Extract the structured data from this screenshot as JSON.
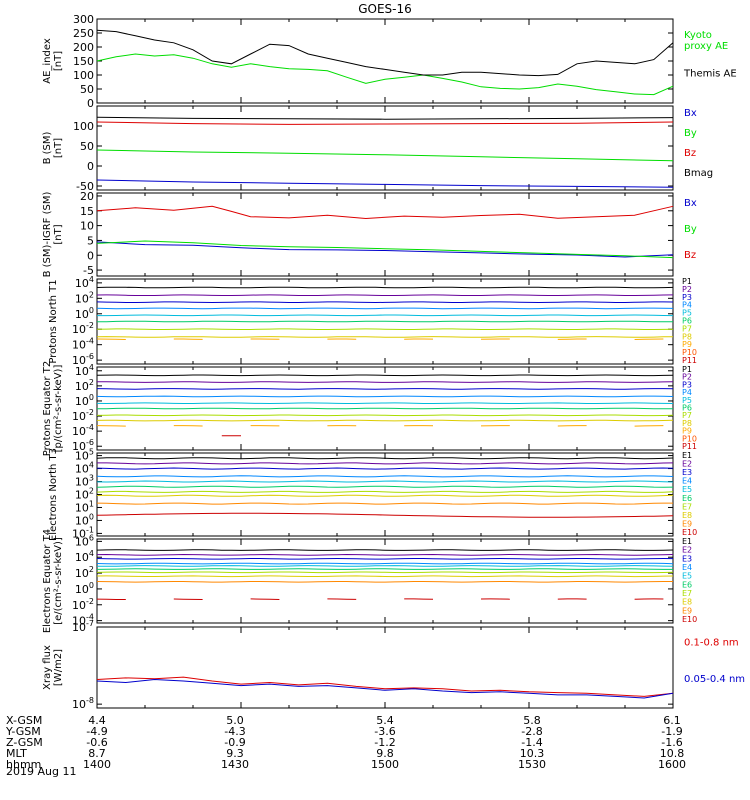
{
  "title": "GOES-16",
  "date_label": "2019 Aug 11",
  "footer": {
    "rows": [
      {
        "label": "X-GSM",
        "values": [
          "4.4",
          "5.0",
          "5.4",
          "5.8",
          "6.1"
        ]
      },
      {
        "label": "Y-GSM",
        "values": [
          "-4.9",
          "-4.3",
          "-3.6",
          "-2.8",
          "-1.9"
        ]
      },
      {
        "label": "Z-GSM",
        "values": [
          "-0.6",
          "-0.9",
          "-1.2",
          "-1.4",
          "-1.6"
        ]
      },
      {
        "label": "MLT",
        "values": [
          "8.7",
          "9.3",
          "9.8",
          "10.3",
          "10.8"
        ]
      },
      {
        "label": "hhmm",
        "values": [
          "1400",
          "1430",
          "1500",
          "1530",
          "1600"
        ]
      }
    ]
  },
  "chart_data": [
    {
      "type": "line",
      "ylabel": "AE_index [nT]",
      "x_range": [
        0,
        120
      ],
      "ylim": [
        0,
        300
      ],
      "yticks": [
        0,
        50,
        100,
        150,
        200,
        250,
        300
      ],
      "ytick_labels": [
        "0",
        "50",
        "100",
        "150",
        "200",
        "250",
        "300"
      ],
      "series": [
        {
          "name": "Kyoto proxy AE",
          "color": "#00dd00",
          "x": [
            0,
            4,
            8,
            12,
            16,
            20,
            24,
            28,
            32,
            36,
            40,
            44,
            48,
            52,
            56,
            60,
            64,
            68,
            72,
            76,
            80,
            84,
            88,
            92,
            96,
            100,
            104,
            108,
            112,
            116,
            120
          ],
          "y": [
            150,
            165,
            175,
            168,
            172,
            160,
            140,
            128,
            140,
            130,
            122,
            120,
            115,
            92,
            70,
            85,
            92,
            100,
            88,
            75,
            58,
            52,
            50,
            55,
            68,
            60,
            48,
            40,
            32,
            30,
            60
          ]
        },
        {
          "name": "Themis AE",
          "color": "#000000",
          "x": [
            0,
            4,
            8,
            12,
            16,
            20,
            24,
            28,
            32,
            36,
            40,
            44,
            48,
            52,
            56,
            60,
            64,
            68,
            72,
            76,
            80,
            84,
            88,
            92,
            96,
            100,
            104,
            108,
            112,
            116,
            120
          ],
          "y": [
            260,
            255,
            240,
            225,
            215,
            190,
            150,
            140,
            175,
            210,
            205,
            175,
            160,
            145,
            130,
            120,
            110,
            100,
            100,
            110,
            110,
            105,
            100,
            98,
            102,
            140,
            150,
            145,
            140,
            155,
            215
          ]
        }
      ]
    },
    {
      "type": "line",
      "ylabel": "B (SM) [nT]",
      "x_range": [
        0,
        120
      ],
      "ylim": [
        -60,
        150
      ],
      "yticks": [
        -50,
        0,
        50,
        100
      ],
      "ytick_labels": [
        "-50",
        "0",
        "50",
        "100"
      ],
      "series": [
        {
          "name": "Bx",
          "color": "#0000cc",
          "x": [
            0,
            20,
            40,
            60,
            80,
            100,
            120
          ],
          "y": [
            -35,
            -40,
            -43,
            -46,
            -49,
            -51,
            -53
          ]
        },
        {
          "name": "By",
          "color": "#00dd00",
          "x": [
            0,
            20,
            40,
            60,
            80,
            100,
            120
          ],
          "y": [
            40,
            35,
            32,
            28,
            23,
            18,
            13
          ]
        },
        {
          "name": "Bz",
          "color": "#dd0000",
          "x": [
            0,
            20,
            40,
            60,
            80,
            100,
            120
          ],
          "y": [
            110,
            106,
            104,
            105,
            106,
            107,
            110
          ]
        },
        {
          "name": "Bmag",
          "color": "#000000",
          "x": [
            0,
            20,
            40,
            60,
            80,
            100,
            120
          ],
          "y": [
            122,
            119,
            118,
            117,
            118,
            119,
            121
          ]
        }
      ]
    },
    {
      "type": "line",
      "ylabel": "B (SM)-IGRF (SM) [nT]",
      "x_range": [
        0,
        120
      ],
      "ylim": [
        -7,
        21
      ],
      "yticks": [
        -5,
        0,
        5,
        10,
        15,
        20
      ],
      "ytick_labels": [
        "-5",
        "0",
        "5",
        "10",
        "15",
        "20"
      ],
      "series": [
        {
          "name": "Bx",
          "color": "#0000cc",
          "x": [
            0,
            10,
            20,
            30,
            40,
            50,
            60,
            70,
            80,
            90,
            100,
            110,
            120
          ],
          "y": [
            4.5,
            3.6,
            3.4,
            2.5,
            1.9,
            1.8,
            1.6,
            1.2,
            0.8,
            0.4,
            0.1,
            -0.6,
            0.2
          ]
        },
        {
          "name": "By",
          "color": "#00dd00",
          "x": [
            0,
            10,
            20,
            30,
            40,
            50,
            60,
            70,
            80,
            90,
            100,
            110,
            120
          ],
          "y": [
            4.0,
            4.8,
            4.2,
            3.3,
            2.9,
            2.6,
            2.2,
            1.8,
            1.3,
            0.8,
            0.3,
            -0.2,
            -0.8
          ]
        },
        {
          "name": "Bz",
          "color": "#dd0000",
          "x": [
            0,
            8,
            16,
            24,
            28,
            32,
            40,
            48,
            56,
            64,
            72,
            80,
            88,
            96,
            104,
            112,
            120
          ],
          "y": [
            15,
            16,
            15.2,
            16.5,
            14.8,
            13,
            12.6,
            13.5,
            12.4,
            13.2,
            12.8,
            13.4,
            13.8,
            12.5,
            13,
            13.5,
            16.5
          ]
        }
      ]
    },
    {
      "type": "line",
      "ylabel": "Protons North T1",
      "log_scale": true,
      "x_range": [
        0,
        120
      ],
      "ylim": [
        -6.5,
        4.5
      ],
      "yticks": [
        -6,
        -4,
        -2,
        0,
        2,
        4
      ],
      "ytick_labels": [
        "10^-6",
        "10^-4",
        "10^-2",
        "10^0",
        "10^2",
        "10^4"
      ],
      "series": [
        {
          "name": "P1",
          "color": "#000000",
          "level": 3.4
        },
        {
          "name": "P2",
          "color": "#660099",
          "level": 2.4
        },
        {
          "name": "P3",
          "color": "#0000cc",
          "level": 1.5
        },
        {
          "name": "P4",
          "color": "#0088ff",
          "level": 0.7
        },
        {
          "name": "P5",
          "color": "#00bbdd",
          "level": -0.2
        },
        {
          "name": "P6",
          "color": "#00cc66",
          "level": -1.0
        },
        {
          "name": "P7",
          "color": "#aadd00",
          "level": -2.0
        },
        {
          "name": "P8",
          "color": "#ddcc00",
          "level": -3.0
        },
        {
          "name": "P9",
          "color": "#ffaa00",
          "level": -3.3,
          "broken": true
        }
      ],
      "legend": [
        "P1",
        "P2",
        "P3",
        "P4",
        "P5",
        "P6",
        "P7",
        "P8",
        "P9",
        "P10",
        "P11"
      ],
      "legend_colors": [
        "#000000",
        "#660099",
        "#0000cc",
        "#0088ff",
        "#00bbdd",
        "#00cc66",
        "#aadd00",
        "#ddcc00",
        "#ffaa00",
        "#ff5500",
        "#cc0000"
      ]
    },
    {
      "type": "line",
      "ylabel": "Protons Equator T2 [p/(cm²-s-sr-keV)]",
      "log_scale": true,
      "x_range": [
        0,
        120
      ],
      "ylim": [
        -6.5,
        4.5
      ],
      "yticks": [
        -6,
        -4,
        -2,
        0,
        2,
        4
      ],
      "ytick_labels": [
        "10^-6",
        "10^-4",
        "10^-2",
        "10^0",
        "10^2",
        "10^4"
      ],
      "series": [
        {
          "name": "P1",
          "color": "#000000",
          "level": 3.4
        },
        {
          "name": "P2",
          "color": "#660099",
          "level": 2.5
        },
        {
          "name": "P3",
          "color": "#0000cc",
          "level": 1.6
        },
        {
          "name": "P4",
          "color": "#0088ff",
          "level": 0.6
        },
        {
          "name": "P5",
          "color": "#00bbdd",
          "level": -0.3
        },
        {
          "name": "P6",
          "color": "#00cc66",
          "level": -1.0
        },
        {
          "name": "P7",
          "color": "#aadd00",
          "level": -1.9
        },
        {
          "name": "P8",
          "color": "#ddcc00",
          "level": -2.6
        },
        {
          "name": "P9",
          "color": "#ffaa00",
          "level": -3.3,
          "broken": true
        },
        {
          "name": "P10",
          "color": "#cc0000",
          "level": -4.6,
          "x": [
            26,
            30
          ]
        }
      ],
      "legend": [
        "P1",
        "P2",
        "P3",
        "P4",
        "P5",
        "P6",
        "P7",
        "P8",
        "P9",
        "P10",
        "P11"
      ],
      "legend_colors": [
        "#000000",
        "#660099",
        "#0000cc",
        "#0088ff",
        "#00bbdd",
        "#00cc66",
        "#aadd00",
        "#ddcc00",
        "#ffaa00",
        "#ff5500",
        "#cc0000"
      ]
    },
    {
      "type": "line",
      "ylabel": "Electrons North T3",
      "log_scale": true,
      "x_range": [
        0,
        120
      ],
      "ylim": [
        -1.2,
        5.2
      ],
      "yticks": [
        -1,
        0,
        1,
        2,
        3,
        4,
        5
      ],
      "ytick_labels": [
        "10^-1",
        "10^0",
        "10^1",
        "10^2",
        "10^3",
        "10^4",
        "10^5"
      ],
      "series": [
        {
          "name": "E1",
          "color": "#000000",
          "level": 4.8
        },
        {
          "name": "E2",
          "color": "#660099",
          "level": 4.4
        },
        {
          "name": "E3",
          "color": "#0000cc",
          "level": 4.0
        },
        {
          "name": "E4",
          "color": "#0088ff",
          "level": 3.4
        },
        {
          "name": "E5",
          "color": "#00bbdd",
          "level": 3.0
        },
        {
          "name": "E6",
          "color": "#00cc66",
          "level": 2.6
        },
        {
          "name": "E7",
          "color": "#aadd00",
          "level": 2.2
        },
        {
          "name": "E8",
          "color": "#ddcc00",
          "level": 1.9
        },
        {
          "name": "E9",
          "color": "#ff8800",
          "level": 1.3
        },
        {
          "name": "E10",
          "color": "#cc0000",
          "level": 0.4,
          "dip": true
        }
      ],
      "legend": [
        "E1",
        "E2",
        "E3",
        "E4",
        "E5",
        "E6",
        "E7",
        "E8",
        "E9",
        "E10"
      ],
      "legend_colors": [
        "#000000",
        "#660099",
        "#0000cc",
        "#0088ff",
        "#00bbdd",
        "#00cc66",
        "#aadd00",
        "#ddcc00",
        "#ff8800",
        "#cc0000"
      ]
    },
    {
      "type": "line",
      "ylabel": "Electrons Equator T4 [e/(cm²-s-sr-keV)]",
      "log_scale": true,
      "x_range": [
        0,
        120
      ],
      "ylim": [
        -4.3,
        6.3
      ],
      "yticks": [
        -4,
        -2,
        0,
        2,
        4,
        6
      ],
      "ytick_labels": [
        "10^-4",
        "10^-2",
        "10^0",
        "10^2",
        "10^4",
        "10^6"
      ],
      "series": [
        {
          "name": "E1",
          "color": "#000000",
          "level": 4.9
        },
        {
          "name": "E2",
          "color": "#660099",
          "level": 4.3
        },
        {
          "name": "E3",
          "color": "#0000cc",
          "level": 3.8
        },
        {
          "name": "E4",
          "color": "#0088ff",
          "level": 3.2
        },
        {
          "name": "E5",
          "color": "#00bbdd",
          "level": 2.9
        },
        {
          "name": "E6",
          "color": "#00cc66",
          "level": 2.5
        },
        {
          "name": "E7",
          "color": "#aadd00",
          "level": 2.1
        },
        {
          "name": "E8",
          "color": "#ddcc00",
          "level": 1.6
        },
        {
          "name": "E9",
          "color": "#ff8800",
          "level": 0.9
        },
        {
          "name": "E10",
          "color": "#cc0000",
          "level": -1.3,
          "broken": true
        }
      ],
      "legend": [
        "E1",
        "E2",
        "E3",
        "E4",
        "E5",
        "E6",
        "E7",
        "E8",
        "E9",
        "E10"
      ],
      "legend_colors": [
        "#000000",
        "#660099",
        "#0000cc",
        "#0088ff",
        "#00bbdd",
        "#00cc66",
        "#aadd00",
        "#ddcc00",
        "#ff8800",
        "#cc0000"
      ]
    },
    {
      "type": "line",
      "ylabel": "Xray flux [W/m2]",
      "log_scale": true,
      "x_range": [
        0,
        120
      ],
      "ylim": [
        -8.05,
        -7
      ],
      "yticks": [
        -8,
        -7
      ],
      "ytick_labels": [
        "10^-8",
        "10^-7"
      ],
      "series": [
        {
          "name": "0.1-0.8 nm",
          "color": "#dd0000",
          "x": [
            0,
            6,
            12,
            18,
            24,
            30,
            36,
            42,
            48,
            54,
            60,
            66,
            72,
            78,
            84,
            90,
            96,
            102,
            108,
            114,
            120
          ],
          "y": [
            -7.68,
            -7.66,
            -7.67,
            -7.65,
            -7.7,
            -7.74,
            -7.72,
            -7.75,
            -7.73,
            -7.77,
            -7.8,
            -7.79,
            -7.8,
            -7.83,
            -7.82,
            -7.84,
            -7.85,
            -7.86,
            -7.88,
            -7.9,
            -7.86
          ]
        },
        {
          "name": "0.05-0.4 nm",
          "color": "#0000cc",
          "x": [
            0,
            6,
            12,
            18,
            24,
            30,
            36,
            42,
            48,
            54,
            60,
            66,
            72,
            78,
            84,
            90,
            96,
            102,
            108,
            114,
            120
          ],
          "y": [
            -7.7,
            -7.72,
            -7.68,
            -7.7,
            -7.73,
            -7.76,
            -7.74,
            -7.77,
            -7.76,
            -7.79,
            -7.82,
            -7.8,
            -7.83,
            -7.85,
            -7.84,
            -7.86,
            -7.88,
            -7.88,
            -7.9,
            -7.92,
            -7.86
          ]
        }
      ]
    }
  ]
}
